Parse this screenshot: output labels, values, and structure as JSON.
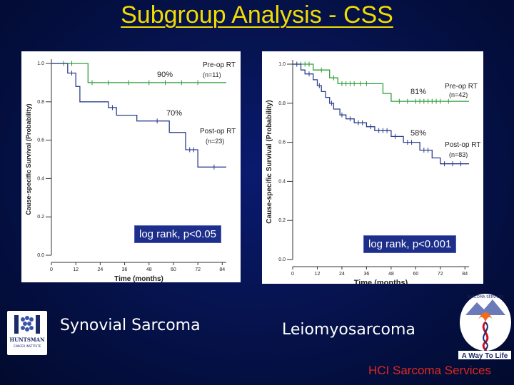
{
  "slide": {
    "title": "Subgroup Analysis - CSS"
  },
  "colors": {
    "preop": "#2f9e3b",
    "postop": "#2c3f8f",
    "title": "#f2dc00",
    "footer": "#e0271e"
  },
  "left_panel": {
    "caption": "Synovial Sarcoma",
    "logrank": "log rank, p<0.05"
  },
  "right_panel": {
    "caption": "Leiomyosarcoma",
    "logrank": "log rank, p<0.001"
  },
  "logos": {
    "huntsman": "HUNTSMAN",
    "huntsman_sub": "CANCER INSTITUTE",
    "sarcoma_top": "SARCOMA SERVICES",
    "sarcoma_tagline": "A Way To Life"
  },
  "footer": "HCI  Sarcoma Services",
  "chart_data": [
    {
      "type": "line",
      "title": "",
      "xlabel": "Time (months)",
      "ylabel": "Cause-specific Survival (Probability)",
      "xlim": [
        0,
        84
      ],
      "ylim": [
        0,
        1
      ],
      "xticks": [
        0,
        12,
        24,
        36,
        48,
        60,
        72,
        84
      ],
      "yticks": [
        0.0,
        0.2,
        0.4,
        0.6,
        0.8,
        1.0
      ],
      "ytick_labels": [
        "0.0",
        "0.2",
        "0.4",
        "0.6",
        "0.8",
        "1.0"
      ],
      "series": [
        {
          "name": "Pre-op RT",
          "n_label": "(n=11)",
          "annotation": "90%",
          "steps": [
            [
              0,
              1.0
            ],
            [
              18,
              1.0
            ],
            [
              18,
              0.9
            ],
            [
              86,
              0.9
            ]
          ],
          "censors": [
            [
              6,
              1.0
            ],
            [
              10,
              1.0
            ],
            [
              20,
              0.9
            ],
            [
              28,
              0.9
            ],
            [
              38,
              0.9
            ],
            [
              48,
              0.9
            ],
            [
              56,
              0.9
            ],
            [
              64,
              0.9
            ],
            [
              72,
              0.9
            ]
          ]
        },
        {
          "name": "Post-op RT",
          "n_label": "(n=23)",
          "annotation": "70%",
          "steps": [
            [
              0,
              1.0
            ],
            [
              8,
              1.0
            ],
            [
              8,
              0.95
            ],
            [
              12,
              0.95
            ],
            [
              12,
              0.88
            ],
            [
              14,
              0.88
            ],
            [
              14,
              0.8
            ],
            [
              28,
              0.8
            ],
            [
              28,
              0.77
            ],
            [
              32,
              0.77
            ],
            [
              32,
              0.73
            ],
            [
              42,
              0.73
            ],
            [
              42,
              0.7
            ],
            [
              58,
              0.7
            ],
            [
              58,
              0.64
            ],
            [
              66,
              0.64
            ],
            [
              66,
              0.55
            ],
            [
              72,
              0.55
            ],
            [
              72,
              0.46
            ],
            [
              86,
              0.46
            ]
          ],
          "censors": [
            [
              10,
              0.95
            ],
            [
              30,
              0.77
            ],
            [
              52,
              0.7
            ],
            [
              68,
              0.55
            ],
            [
              70,
              0.55
            ],
            [
              80,
              0.46
            ]
          ]
        }
      ]
    },
    {
      "type": "line",
      "title": "",
      "xlabel": "Time (months)",
      "ylabel": "Cause-specific Survival (Probability)",
      "xlim": [
        0,
        84
      ],
      "ylim": [
        0,
        1
      ],
      "xticks": [
        0,
        12,
        24,
        36,
        48,
        60,
        72,
        84
      ],
      "yticks": [
        0.0,
        0.2,
        0.4,
        0.6,
        0.8,
        1.0
      ],
      "ytick_labels": [
        "0.0",
        "0.2",
        "0.4",
        "0.6",
        "0.8",
        "1.0"
      ],
      "series": [
        {
          "name": "Pre-op RT",
          "n_label": "(n=42)",
          "annotation": "81%",
          "steps": [
            [
              0,
              1.0
            ],
            [
              10,
              1.0
            ],
            [
              10,
              0.97
            ],
            [
              18,
              0.97
            ],
            [
              18,
              0.93
            ],
            [
              22,
              0.93
            ],
            [
              22,
              0.9
            ],
            [
              44,
              0.9
            ],
            [
              44,
              0.85
            ],
            [
              48,
              0.85
            ],
            [
              48,
              0.81
            ],
            [
              86,
              0.81
            ]
          ],
          "censors": [
            [
              4,
              1.0
            ],
            [
              6,
              1.0
            ],
            [
              8,
              1.0
            ],
            [
              14,
              0.97
            ],
            [
              20,
              0.93
            ],
            [
              24,
              0.9
            ],
            [
              26,
              0.9
            ],
            [
              28,
              0.9
            ],
            [
              30,
              0.9
            ],
            [
              33,
              0.9
            ],
            [
              36,
              0.9
            ],
            [
              52,
              0.81
            ],
            [
              56,
              0.81
            ],
            [
              60,
              0.81
            ],
            [
              62,
              0.81
            ],
            [
              64,
              0.81
            ],
            [
              66,
              0.81
            ],
            [
              68,
              0.81
            ],
            [
              70,
              0.81
            ],
            [
              72,
              0.81
            ],
            [
              76,
              0.81
            ]
          ]
        },
        {
          "name": "Post-op RT",
          "n_label": "(n=83)",
          "annotation": "58%",
          "steps": [
            [
              0,
              1.0
            ],
            [
              4,
              1.0
            ],
            [
              4,
              0.97
            ],
            [
              6,
              0.97
            ],
            [
              6,
              0.95
            ],
            [
              10,
              0.95
            ],
            [
              10,
              0.92
            ],
            [
              12,
              0.92
            ],
            [
              12,
              0.89
            ],
            [
              14,
              0.89
            ],
            [
              14,
              0.86
            ],
            [
              16,
              0.86
            ],
            [
              16,
              0.83
            ],
            [
              18,
              0.83
            ],
            [
              18,
              0.8
            ],
            [
              20,
              0.8
            ],
            [
              20,
              0.77
            ],
            [
              23,
              0.77
            ],
            [
              23,
              0.74
            ],
            [
              26,
              0.74
            ],
            [
              26,
              0.72
            ],
            [
              30,
              0.72
            ],
            [
              30,
              0.7
            ],
            [
              36,
              0.7
            ],
            [
              36,
              0.68
            ],
            [
              40,
              0.68
            ],
            [
              40,
              0.66
            ],
            [
              48,
              0.66
            ],
            [
              48,
              0.63
            ],
            [
              54,
              0.63
            ],
            [
              54,
              0.6
            ],
            [
              62,
              0.6
            ],
            [
              62,
              0.56
            ],
            [
              68,
              0.56
            ],
            [
              68,
              0.52
            ],
            [
              72,
              0.52
            ],
            [
              72,
              0.49
            ],
            [
              86,
              0.49
            ]
          ],
          "censors": [
            [
              2,
              1.0
            ],
            [
              8,
              0.95
            ],
            [
              13,
              0.89
            ],
            [
              19,
              0.8
            ],
            [
              24,
              0.74
            ],
            [
              28,
              0.72
            ],
            [
              32,
              0.7
            ],
            [
              34,
              0.7
            ],
            [
              38,
              0.68
            ],
            [
              42,
              0.66
            ],
            [
              44,
              0.66
            ],
            [
              46,
              0.66
            ],
            [
              50,
              0.63
            ],
            [
              56,
              0.6
            ],
            [
              58,
              0.6
            ],
            [
              64,
              0.56
            ],
            [
              66,
              0.56
            ],
            [
              74,
              0.49
            ],
            [
              78,
              0.49
            ],
            [
              82,
              0.49
            ]
          ]
        }
      ]
    }
  ]
}
